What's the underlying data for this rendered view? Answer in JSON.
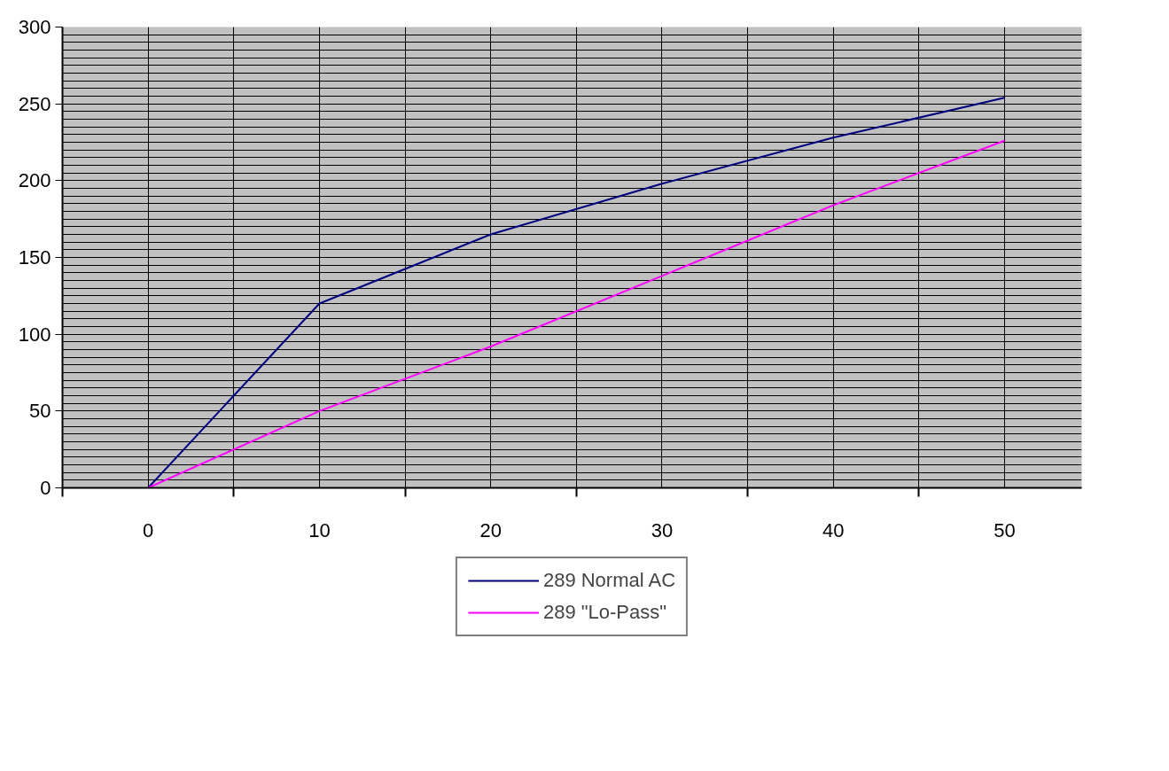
{
  "chart_data": {
    "type": "line",
    "x": [
      0,
      10,
      20,
      30,
      40,
      50
    ],
    "series": [
      {
        "name": "289 Normal AC",
        "color": "#000080",
        "values": [
          0,
          120,
          165,
          198,
          228,
          254
        ]
      },
      {
        "name": "289 \"Lo-Pass\"",
        "color": "#ff00ff",
        "values": [
          0,
          50,
          92,
          138,
          184,
          226
        ]
      }
    ],
    "xlim": [
      -5,
      54.5
    ],
    "xticks": [
      0,
      10,
      20,
      30,
      40,
      50,
      {
        "value": -5,
        "label": null
      },
      {
        "value": 5,
        "label": null
      },
      {
        "value": 15,
        "label": null
      },
      {
        "value": 25,
        "label": null
      },
      {
        "value": 35,
        "label": null
      },
      {
        "value": 45,
        "label": null
      }
    ],
    "ylim": [
      0,
      300
    ],
    "yticks": [
      0,
      50,
      100,
      150,
      200,
      250,
      300,
      {
        "value": 5,
        "label": null
      },
      {
        "value": 10,
        "label": null
      },
      {
        "value": 15,
        "label": null
      },
      {
        "value": 20,
        "label": null
      },
      {
        "value": 25,
        "label": null
      },
      {
        "value": 30,
        "label": null
      },
      {
        "value": 35,
        "label": null
      },
      {
        "value": 40,
        "label": null
      },
      {
        "value": 45,
        "label": null
      },
      {
        "value": 55,
        "label": null
      },
      {
        "value": 60,
        "label": null
      },
      {
        "value": 65,
        "label": null
      },
      {
        "value": 70,
        "label": null
      },
      {
        "value": 75,
        "label": null
      },
      {
        "value": 80,
        "label": null
      },
      {
        "value": 85,
        "label": null
      },
      {
        "value": 90,
        "label": null
      },
      {
        "value": 95,
        "label": null
      },
      {
        "value": 105,
        "label": null
      },
      {
        "value": 110,
        "label": null
      },
      {
        "value": 115,
        "label": null
      },
      {
        "value": 120,
        "label": null
      },
      {
        "value": 125,
        "label": null
      },
      {
        "value": 130,
        "label": null
      },
      {
        "value": 135,
        "label": null
      },
      {
        "value": 140,
        "label": null
      },
      {
        "value": 145,
        "label": null
      },
      {
        "value": 155,
        "label": null
      },
      {
        "value": 160,
        "label": null
      },
      {
        "value": 165,
        "label": null
      },
      {
        "value": 170,
        "label": null
      },
      {
        "value": 175,
        "label": null
      },
      {
        "value": 180,
        "label": null
      },
      {
        "value": 185,
        "label": null
      },
      {
        "value": 190,
        "label": null
      },
      {
        "value": 195,
        "label": null
      },
      {
        "value": 205,
        "label": null
      },
      {
        "value": 210,
        "label": null
      },
      {
        "value": 215,
        "label": null
      },
      {
        "value": 220,
        "label": null
      },
      {
        "value": 225,
        "label": null
      },
      {
        "value": 230,
        "label": null
      },
      {
        "value": 235,
        "label": null
      },
      {
        "value": 240,
        "label": null
      },
      {
        "value": 245,
        "label": null
      },
      {
        "value": 255,
        "label": null
      },
      {
        "value": 260,
        "label": null
      },
      {
        "value": 265,
        "label": null
      },
      {
        "value": 270,
        "label": null
      },
      {
        "value": 275,
        "label": null
      },
      {
        "value": 280,
        "label": null
      },
      {
        "value": 285,
        "label": null
      },
      {
        "value": 290,
        "label": null
      },
      {
        "value": 295,
        "label": null
      }
    ],
    "grid": true,
    "legend": "bottom",
    "marker": "none",
    "line_style": "solid"
  }
}
